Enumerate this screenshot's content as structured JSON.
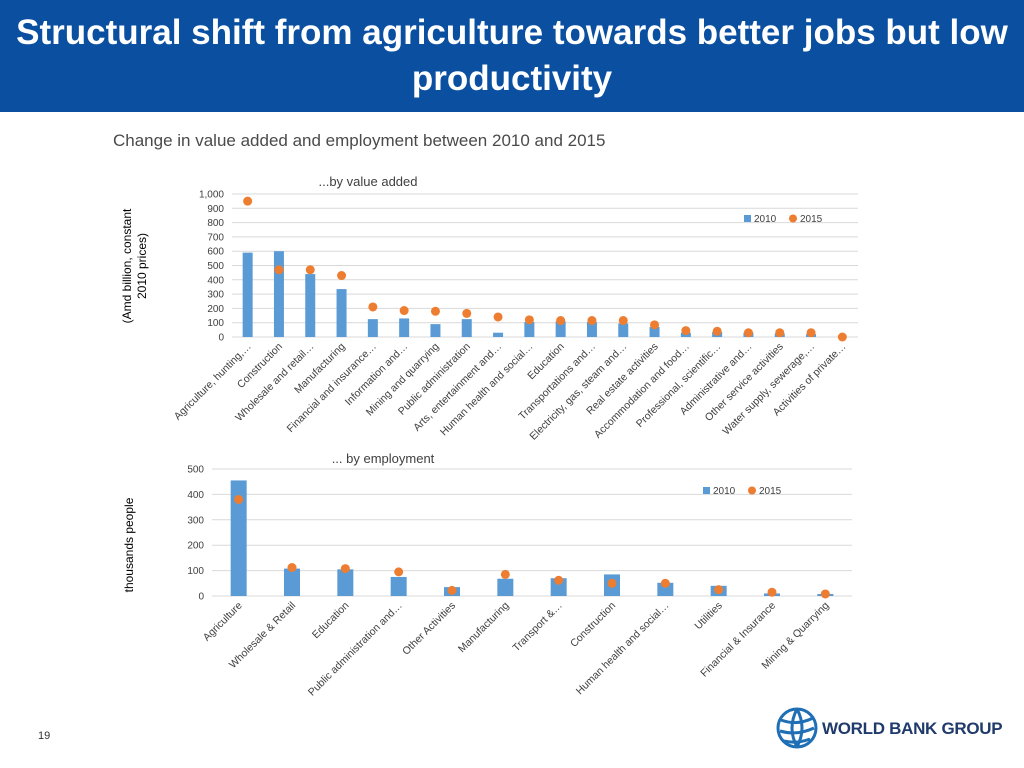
{
  "header": {
    "title": "Structural shift from agriculture towards better jobs but low productivity",
    "bg_color": "#0a4fa0"
  },
  "subtitle": "Change in value added and employment between 2010 and 2015",
  "page_number": "19",
  "logo": {
    "text": "WORLD BANK GROUP",
    "icon": "globe-icon"
  },
  "colors": {
    "bar": "#5b9bd5",
    "dot": "#ed7d31"
  },
  "chart_data": [
    {
      "type": "bar",
      "title": "...by value added",
      "xlabel": "",
      "ylabel": "(Amd billion, constant 2010 prices)",
      "ylim": [
        0,
        1000
      ],
      "yticks": [
        0,
        100,
        200,
        300,
        400,
        500,
        600,
        700,
        800,
        900,
        1000
      ],
      "ytick_labels": [
        "0",
        "100",
        "200",
        "300",
        "400",
        "500",
        "600",
        "700",
        "800",
        "900",
        "1,000"
      ],
      "grid": true,
      "legend_position": "top-right",
      "categories": [
        "Agriculture, hunting,…",
        "Construction",
        "Wholesale and retail…",
        "Manufacturing",
        "Financial and insurance…",
        "Information and…",
        "Mining and quarrying",
        "Public administration",
        "Arts, entertainment and…",
        "Human health and social…",
        "Education",
        "Transportations and…",
        "Electricity, gas, steam and…",
        "Real estate activities",
        "Accommodation and food…",
        "Professional, scientific…",
        "Administrative and…",
        "Other service activities",
        "Water supply, sewerage,…",
        "Activities of private…"
      ],
      "series": [
        {
          "name": "2010",
          "kind": "bar",
          "values": [
            590,
            600,
            440,
            335,
            125,
            130,
            90,
            125,
            30,
            105,
            110,
            105,
            95,
            70,
            30,
            35,
            30,
            25,
            20,
            0
          ]
        },
        {
          "name": "2015",
          "kind": "dot",
          "values": [
            950,
            470,
            470,
            430,
            210,
            185,
            180,
            165,
            140,
            120,
            115,
            115,
            115,
            85,
            45,
            40,
            30,
            30,
            30,
            0
          ]
        }
      ]
    },
    {
      "type": "bar",
      "title": "... by employment",
      "xlabel": "",
      "ylabel": "thousands people",
      "ylim": [
        0,
        500
      ],
      "yticks": [
        0,
        100,
        200,
        300,
        400,
        500
      ],
      "ytick_labels": [
        "0",
        "100",
        "200",
        "300",
        "400",
        "500"
      ],
      "grid": true,
      "legend_position": "top-right",
      "categories": [
        "Agriculture",
        "Wholesale & Retail",
        "Education",
        "Public administration and…",
        "Other Activities",
        "Manufacturing",
        "Transport &…",
        "Construction",
        "Human health and social…",
        "Utilities",
        "Financial & Insurance",
        "Mining & Quarrying"
      ],
      "series": [
        {
          "name": "2010",
          "kind": "bar",
          "values": [
            455,
            108,
            105,
            75,
            35,
            68,
            70,
            85,
            52,
            40,
            10,
            8
          ]
        },
        {
          "name": "2015",
          "kind": "dot",
          "values": [
            380,
            112,
            108,
            95,
            22,
            85,
            62,
            50,
            50,
            25,
            15,
            8
          ]
        }
      ]
    }
  ]
}
